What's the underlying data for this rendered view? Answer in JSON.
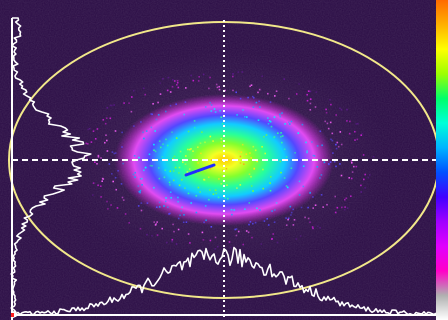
{
  "image": {
    "subject": "laser-beam-profile",
    "colormap": [
      "#2a0b45",
      "#5b1a8a",
      "#c51fd0",
      "#f05cf4",
      "#5a49ff",
      "#1aa0ff",
      "#00f4ff",
      "#2bff9a",
      "#7dff2a",
      "#e6ff28",
      "#ffe21a",
      "#ff9a17",
      "#ff3a10",
      "#ffffff"
    ],
    "background_color": "#2a0b45",
    "ellipse_color": "#f2e88a",
    "crosshair_color": "#ffffff",
    "profile_trace_color": "#ffffff"
  },
  "scale_bar": {
    "colors": [
      "#ff6a00",
      "#ffb000",
      "#ffff00",
      "#9dff00",
      "#00ff6a",
      "#00ffd8",
      "#00b4ff",
      "#0050ff",
      "#4000ff",
      "#a000ff",
      "#e000ff",
      "#ff00c8",
      "#b0b0b0",
      "#ffffff"
    ]
  }
}
